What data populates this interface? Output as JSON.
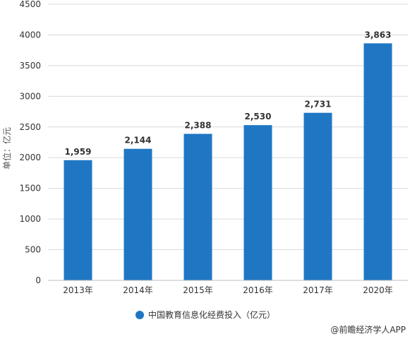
{
  "chart_data": {
    "type": "bar",
    "categories": [
      "2013年",
      "2014年",
      "2015年",
      "2016年",
      "2017年",
      "2020年"
    ],
    "series": [
      {
        "name": "中国教育信息化经费投入（亿元）",
        "values": [
          1959,
          2144,
          2388,
          2530,
          2731,
          3863
        ],
        "color": "#1f77c4"
      }
    ],
    "data_labels": [
      "1,959",
      "2,144",
      "2,388",
      "2,530",
      "2,731",
      "3,863"
    ],
    "ylabel": "单位：亿元",
    "ylim": [
      0,
      4500
    ],
    "yticks": [
      "0",
      "500",
      "1000",
      "1500",
      "2000",
      "2500",
      "3000",
      "3500",
      "4000",
      "4500"
    ],
    "grid": true,
    "legend_position": "bottom-center"
  },
  "source": "@前瞻经济学人APP",
  "colors": {
    "bar": "#1f77c4",
    "grid": "#d9d9d9",
    "axis": "#bfbfbf"
  }
}
